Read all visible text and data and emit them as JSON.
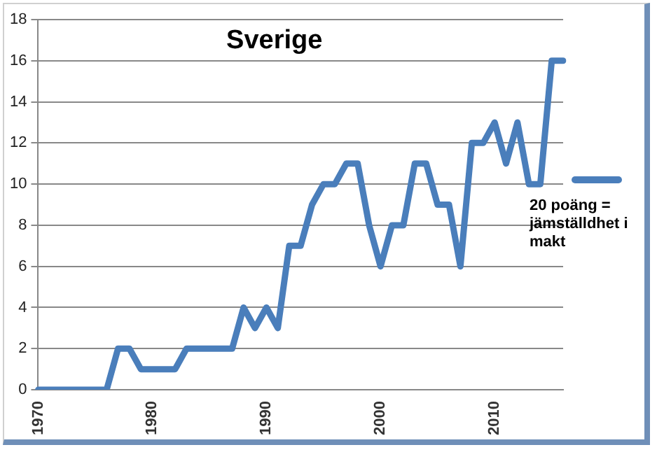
{
  "chart_data": {
    "type": "line",
    "title": "Sverige",
    "categories": [
      "1970",
      null,
      null,
      null,
      null,
      null,
      null,
      null,
      null,
      null,
      "1980",
      null,
      null,
      null,
      null,
      null,
      null,
      null,
      null,
      null,
      "1990",
      null,
      null,
      null,
      null,
      null,
      null,
      null,
      null,
      null,
      "2000",
      null,
      null,
      null,
      null,
      null,
      null,
      null,
      null,
      null,
      "2010",
      null,
      null,
      null,
      null,
      null,
      null
    ],
    "series": [
      {
        "name": "20 poäng = jämställdhet i makt",
        "color": "#4a7ebb",
        "values": [
          0,
          0,
          0,
          0,
          0,
          0,
          0,
          2,
          2,
          1,
          1,
          1,
          1,
          2,
          2,
          2,
          2,
          2,
          4,
          3,
          4,
          3,
          7,
          7,
          9,
          10,
          10,
          11,
          11,
          8,
          6,
          8,
          8,
          11,
          11,
          9,
          9,
          6,
          12,
          12,
          13,
          11,
          13,
          10,
          10,
          16,
          16
        ]
      }
    ],
    "ylim": [
      0,
      18
    ],
    "yticks": [
      0,
      2,
      4,
      6,
      8,
      10,
      12,
      14,
      16,
      18
    ],
    "grid": "y",
    "legend": "right",
    "marker": "none",
    "line_style": "solid"
  }
}
